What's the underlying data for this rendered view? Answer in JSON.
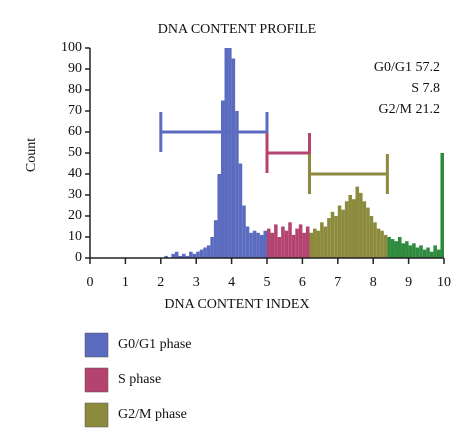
{
  "chart_data": {
    "type": "histogram",
    "title": "DNA CONTENT PROFILE",
    "x_label": "DNA CONTENT INDEX",
    "y_label": "Count",
    "xlim": [
      0,
      10
    ],
    "xticks": [
      0,
      1,
      2,
      3,
      4,
      5,
      6,
      7,
      8,
      9,
      10
    ],
    "ylim": [
      0,
      100
    ],
    "yticks": [
      0,
      10,
      20,
      30,
      40,
      50,
      60,
      70,
      80,
      90,
      100
    ],
    "annotations": [
      "G0/G1 57.2",
      "S 7.8",
      "G2/M 21.2"
    ],
    "series": [
      {
        "name": "G0/G1 phase",
        "color": "#5b6cc0",
        "bins": [
          2,
          2.1,
          2.2,
          2.3,
          2.4,
          2.5,
          2.6,
          2.7,
          2.8,
          2.9,
          3,
          3.1,
          3.2,
          3.3,
          3.4,
          3.5,
          3.6,
          3.7,
          3.8,
          3.9,
          4,
          4.1,
          4.2,
          4.3,
          4.4,
          4.5,
          4.6,
          4.7,
          4.8,
          4.9,
          5
        ],
        "counts": [
          0,
          1,
          0,
          2,
          3,
          1,
          2,
          1,
          3,
          2,
          3,
          4,
          5,
          6,
          10,
          18,
          40,
          75,
          100,
          100,
          95,
          70,
          45,
          25,
          15,
          12,
          13,
          12,
          11,
          13
        ]
      },
      {
        "name": "S phase",
        "color": "#b4446f",
        "bins": [
          5,
          5.1,
          5.2,
          5.3,
          5.4,
          5.5,
          5.6,
          5.7,
          5.8,
          5.9,
          6,
          6.1,
          6.2
        ],
        "counts": [
          14,
          12,
          16,
          10,
          15,
          13,
          17,
          11,
          14,
          16,
          12,
          15
        ]
      },
      {
        "name": "G2/M phase",
        "color": "#8c8a3c",
        "bins": [
          6.2,
          6.3,
          6.4,
          6.5,
          6.6,
          6.7,
          6.8,
          6.9,
          7,
          7.1,
          7.2,
          7.3,
          7.4,
          7.5,
          7.6,
          7.7,
          7.8,
          7.9,
          8,
          8.1,
          8.2,
          8.3,
          8.4
        ],
        "counts": [
          12,
          14,
          13,
          17,
          15,
          19,
          22,
          20,
          25,
          23,
          27,
          30,
          28,
          34,
          31,
          27,
          24,
          20,
          17,
          14,
          13,
          11
        ]
      },
      {
        "color": "#2e8b3e",
        "bins": [
          8.4,
          8.5,
          8.6,
          8.7,
          8.8,
          8.9,
          9,
          9.1,
          9.2,
          9.3,
          9.4,
          9.5,
          9.6,
          9.7,
          9.8,
          9.9,
          10
        ],
        "counts": [
          10,
          9,
          8,
          10,
          7,
          8,
          6,
          7,
          5,
          6,
          4,
          5,
          3,
          6,
          4,
          50
        ]
      }
    ],
    "gates": [
      {
        "x": [
          2,
          5
        ],
        "y": 60,
        "color": "#5b6cc0"
      },
      {
        "x": [
          5,
          6.2
        ],
        "y": 50,
        "color": "#b4446f"
      },
      {
        "x": [
          6.2,
          8.4
        ],
        "y": 40,
        "color": "#8c8a3c"
      }
    ]
  }
}
